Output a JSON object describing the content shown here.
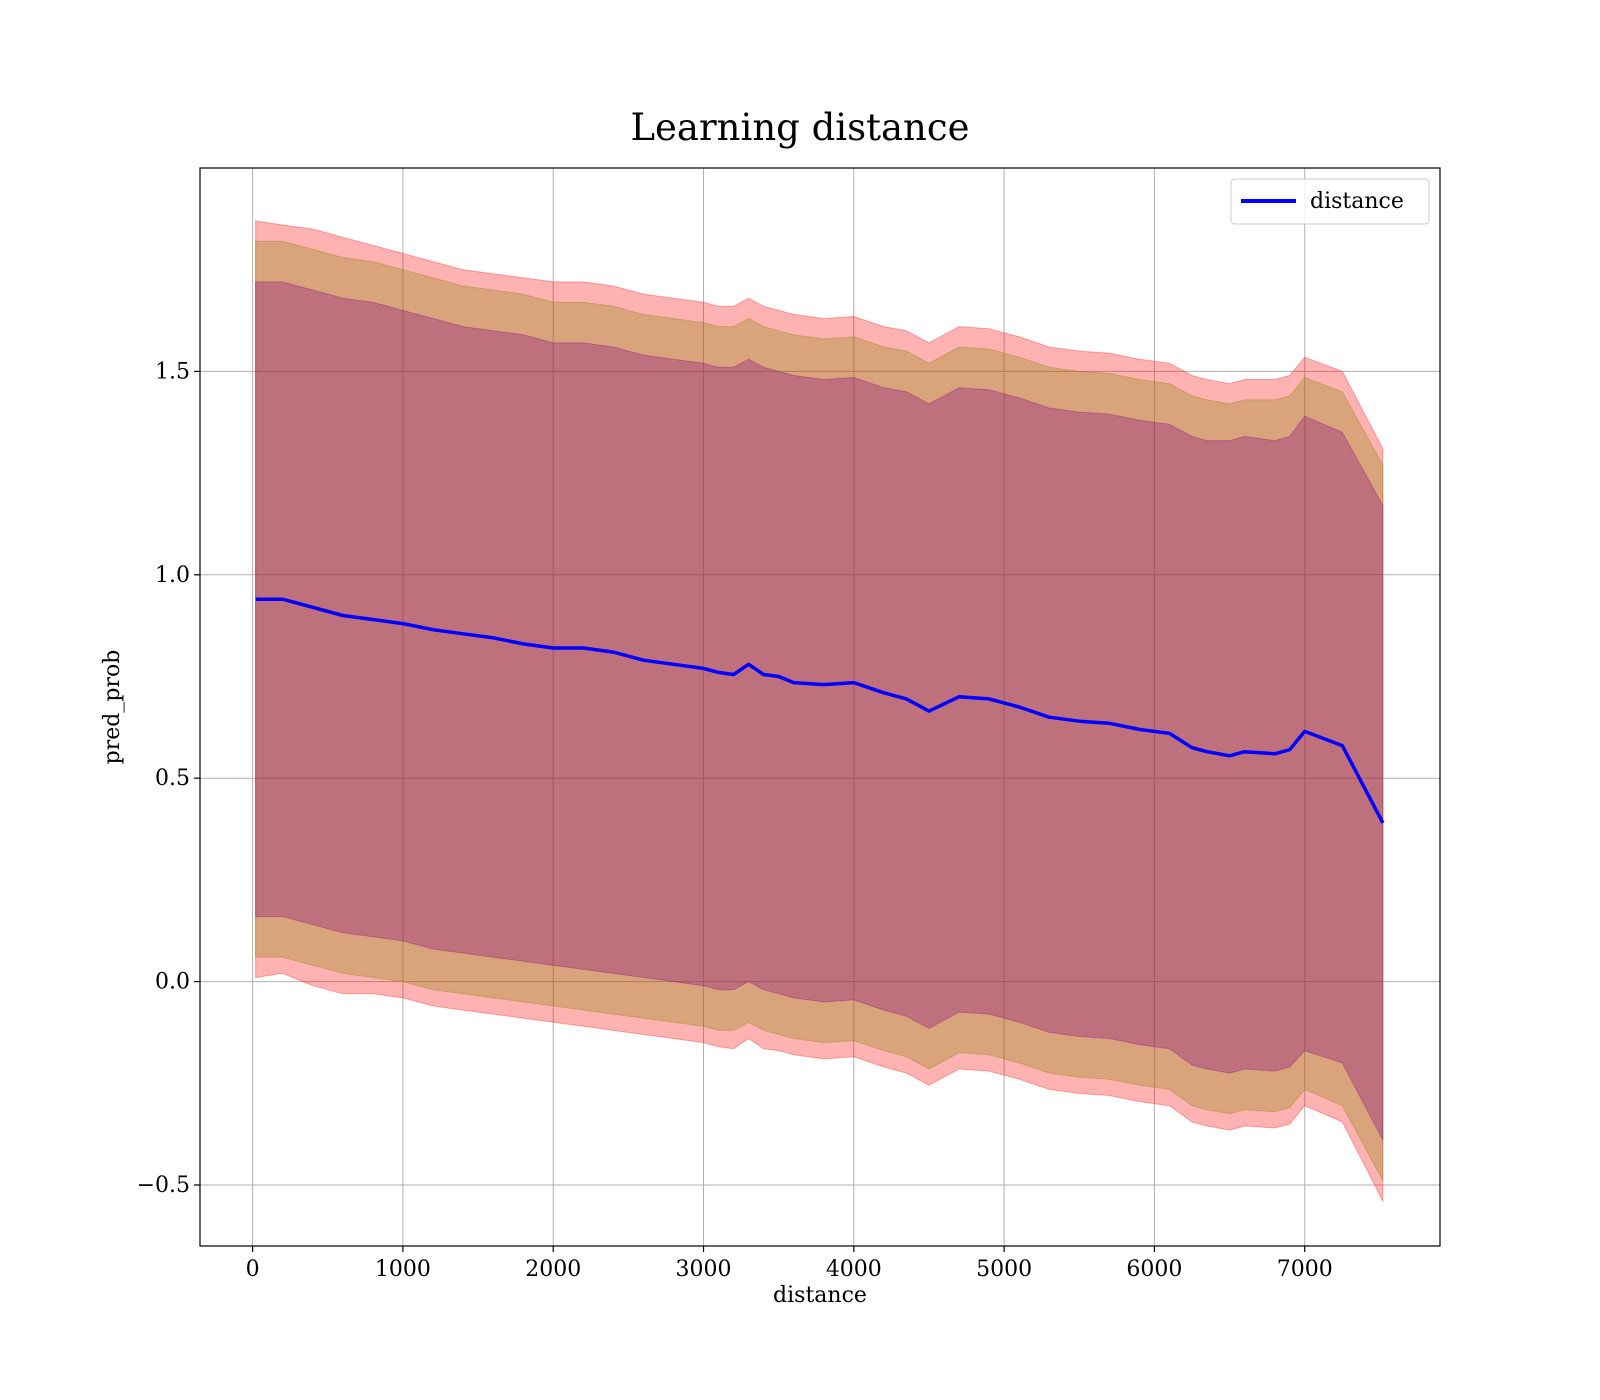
{
  "chart_data": {
    "type": "line",
    "title": "Learning distance",
    "xlabel": "distance",
    "ylabel": "pred_prob",
    "xlim": [
      -350,
      7900
    ],
    "ylim": [
      -0.65,
      2.0
    ],
    "grid": true,
    "legend_position": "top-right",
    "x_ticks": [
      0,
      1000,
      2000,
      3000,
      4000,
      5000,
      6000,
      7000
    ],
    "x_tick_labels": [
      "0",
      "1000",
      "2000",
      "3000",
      "4000",
      "5000",
      "6000",
      "7000"
    ],
    "y_ticks": [
      -0.5,
      0.0,
      0.5,
      1.0,
      1.5
    ],
    "y_tick_labels": [
      "−0.5",
      "0.0",
      "0.5",
      "1.0",
      "1.5"
    ],
    "x": [
      20,
      200,
      400,
      600,
      800,
      1000,
      1200,
      1400,
      1600,
      1800,
      2000,
      2200,
      2400,
      2600,
      2800,
      3000,
      3100,
      3200,
      3300,
      3400,
      3500,
      3600,
      3800,
      4000,
      4200,
      4350,
      4500,
      4700,
      4900,
      5100,
      5300,
      5500,
      5700,
      5900,
      6100,
      6250,
      6350,
      6500,
      6600,
      6800,
      6900,
      7000,
      7250,
      7520
    ],
    "series": [
      {
        "name": "distance",
        "color": "#0000ff",
        "values": [
          0.94,
          0.94,
          0.92,
          0.9,
          0.89,
          0.88,
          0.865,
          0.855,
          0.845,
          0.83,
          0.82,
          0.82,
          0.81,
          0.79,
          0.78,
          0.77,
          0.76,
          0.755,
          0.78,
          0.755,
          0.75,
          0.735,
          0.73,
          0.735,
          0.71,
          0.695,
          0.665,
          0.7,
          0.695,
          0.675,
          0.65,
          0.64,
          0.635,
          0.62,
          0.61,
          0.575,
          0.565,
          0.555,
          0.565,
          0.56,
          0.57,
          0.615,
          0.58,
          0.39
        ]
      }
    ],
    "bands": [
      {
        "color": "#ff0000",
        "opacity": 0.3,
        "upper": [
          1.87,
          1.86,
          1.85,
          1.83,
          1.81,
          1.79,
          1.77,
          1.75,
          1.74,
          1.73,
          1.72,
          1.72,
          1.71,
          1.69,
          1.68,
          1.67,
          1.66,
          1.66,
          1.68,
          1.66,
          1.65,
          1.64,
          1.63,
          1.635,
          1.61,
          1.6,
          1.57,
          1.61,
          1.605,
          1.585,
          1.56,
          1.55,
          1.545,
          1.53,
          1.52,
          1.49,
          1.48,
          1.47,
          1.48,
          1.48,
          1.49,
          1.535,
          1.5,
          1.31
        ],
        "lower": [
          0.01,
          0.02,
          -0.01,
          -0.03,
          -0.03,
          -0.04,
          -0.06,
          -0.07,
          -0.08,
          -0.09,
          -0.1,
          -0.11,
          -0.12,
          -0.13,
          -0.14,
          -0.15,
          -0.16,
          -0.165,
          -0.14,
          -0.165,
          -0.17,
          -0.18,
          -0.19,
          -0.185,
          -0.21,
          -0.225,
          -0.255,
          -0.215,
          -0.22,
          -0.24,
          -0.265,
          -0.275,
          -0.28,
          -0.295,
          -0.305,
          -0.345,
          -0.355,
          -0.365,
          -0.355,
          -0.36,
          -0.35,
          -0.305,
          -0.345,
          -0.54
        ]
      },
      {
        "color": "#808000",
        "opacity": 0.3,
        "upper": [
          1.82,
          1.82,
          1.8,
          1.78,
          1.77,
          1.75,
          1.73,
          1.71,
          1.7,
          1.69,
          1.67,
          1.67,
          1.66,
          1.64,
          1.63,
          1.62,
          1.61,
          1.61,
          1.63,
          1.61,
          1.6,
          1.59,
          1.58,
          1.585,
          1.56,
          1.55,
          1.52,
          1.56,
          1.555,
          1.535,
          1.51,
          1.5,
          1.495,
          1.48,
          1.47,
          1.44,
          1.43,
          1.42,
          1.43,
          1.43,
          1.44,
          1.485,
          1.45,
          1.27
        ],
        "lower": [
          0.06,
          0.06,
          0.04,
          0.02,
          0.01,
          0.0,
          -0.02,
          -0.03,
          -0.04,
          -0.05,
          -0.06,
          -0.07,
          -0.08,
          -0.09,
          -0.1,
          -0.11,
          -0.12,
          -0.12,
          -0.1,
          -0.12,
          -0.13,
          -0.14,
          -0.15,
          -0.145,
          -0.17,
          -0.185,
          -0.215,
          -0.175,
          -0.18,
          -0.2,
          -0.225,
          -0.235,
          -0.24,
          -0.255,
          -0.265,
          -0.305,
          -0.315,
          -0.325,
          -0.315,
          -0.32,
          -0.31,
          -0.265,
          -0.305,
          -0.49
        ]
      },
      {
        "color": "#800080",
        "opacity": 0.3,
        "upper": [
          1.72,
          1.72,
          1.7,
          1.68,
          1.67,
          1.65,
          1.63,
          1.61,
          1.6,
          1.59,
          1.57,
          1.57,
          1.56,
          1.54,
          1.53,
          1.52,
          1.51,
          1.51,
          1.53,
          1.51,
          1.5,
          1.49,
          1.48,
          1.485,
          1.46,
          1.45,
          1.42,
          1.46,
          1.455,
          1.435,
          1.41,
          1.4,
          1.395,
          1.38,
          1.37,
          1.34,
          1.33,
          1.33,
          1.34,
          1.33,
          1.34,
          1.39,
          1.35,
          1.17
        ],
        "lower": [
          0.16,
          0.16,
          0.14,
          0.12,
          0.11,
          0.1,
          0.08,
          0.07,
          0.06,
          0.05,
          0.04,
          0.03,
          0.02,
          0.01,
          0.0,
          -0.01,
          -0.02,
          -0.02,
          0.0,
          -0.02,
          -0.03,
          -0.04,
          -0.05,
          -0.045,
          -0.07,
          -0.085,
          -0.115,
          -0.075,
          -0.08,
          -0.1,
          -0.125,
          -0.135,
          -0.14,
          -0.155,
          -0.165,
          -0.205,
          -0.215,
          -0.225,
          -0.215,
          -0.22,
          -0.21,
          -0.17,
          -0.2,
          -0.39
        ]
      }
    ]
  }
}
